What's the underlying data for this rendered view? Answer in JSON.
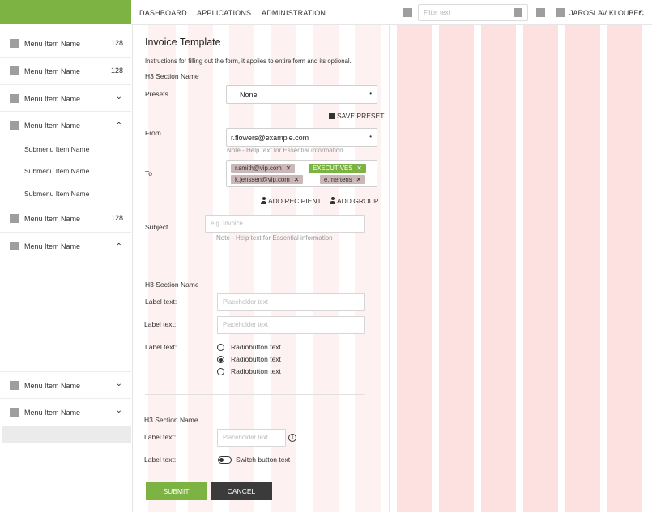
{
  "colors": {
    "brand_green": "#7cb342",
    "dark_button": "#3b3b3b",
    "grid_overlay": "#fde1e1",
    "tag_gray": "#cbb7b7"
  },
  "topnav": {
    "items": [
      "DASHBOARD",
      "APPLICATIONS",
      "ADMINISTRATION"
    ],
    "filter_placeholder": "Filter text",
    "user_name": "JAROSLAV KLOUBEC",
    "user_caret": "▾"
  },
  "sidebar": {
    "items": [
      {
        "label": "Menu Item Name",
        "count": "128",
        "chevron": ""
      },
      {
        "label": "Menu Item Name",
        "count": "128",
        "chevron": ""
      },
      {
        "label": "Menu Item Name",
        "count": "",
        "chevron": "⌄"
      },
      {
        "label": "Menu Item Name",
        "count": "",
        "chevron": "⌃"
      },
      {
        "label": "Menu Item Name",
        "count": "128",
        "chevron": ""
      },
      {
        "label": "Menu Item Name",
        "count": "",
        "chevron": "⌃"
      },
      {
        "label": "Menu Item Name",
        "count": "",
        "chevron": "⌄"
      },
      {
        "label": "Menu Item Name",
        "count": "",
        "chevron": "⌄"
      }
    ],
    "subitems": [
      "Submenu Item Name",
      "Submenu Item Name",
      "Submenu Item Name"
    ]
  },
  "form": {
    "title": "Invoice Template",
    "instructions": "Instructions for filling out the form, it applies to entire form and its optional.",
    "section1": "H3 Section Name",
    "presets_label": "Presets",
    "presets_value": "None",
    "save_preset": "SAVE PRESET",
    "from_label": "From",
    "from_value": "r.flowers@example.com",
    "from_help": "Note - Help text for Essential information",
    "to_label": "To",
    "tags": [
      {
        "text": "r.smith@vip.com",
        "remove": "✕"
      },
      {
        "text": "EXECUTIVES",
        "remove": "✕"
      },
      {
        "text": "k.jenssen@vip.com",
        "remove": "✕"
      },
      {
        "text": "e.mertens",
        "remove": "✕"
      }
    ],
    "add_recipient": "ADD RECIPIENT",
    "add_group": "ADD GROUP",
    "subject_label": "Subject",
    "subject_placeholder": "e.g. Invoice",
    "subject_help": "Note - Help text for Essential information",
    "section2": "H3 Section Name",
    "label_text": "Label text:",
    "placeholder": "Placeholder text",
    "radios": [
      "Radiobutton text",
      "Radiobutton text",
      "Radiobutton text"
    ],
    "radio_selected": 1,
    "section3": "H3 Section Name",
    "info_glyph": "i",
    "switch_label": "Switch button text",
    "submit": "SUBMIT",
    "cancel": "CANCEL"
  }
}
